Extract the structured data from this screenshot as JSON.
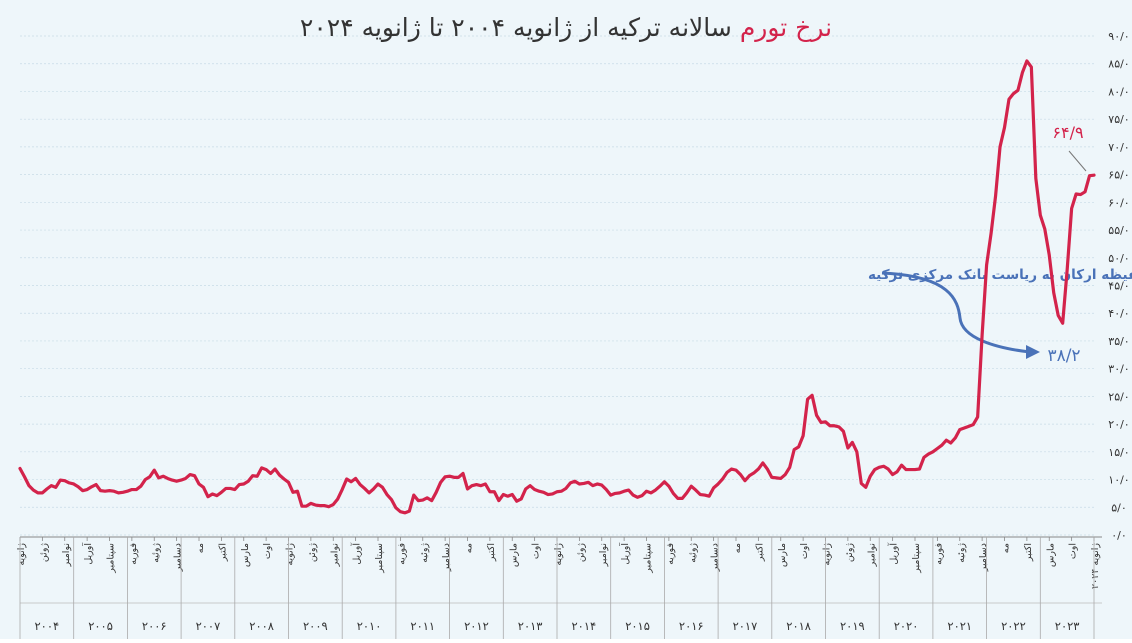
{
  "title": {
    "highlight": "نرخ تورم",
    "rest": "سالانه ترکیه از ژانویه ۲۰۰۴ تا ژانویه ۲۰۲۴"
  },
  "colors": {
    "background": "#eef6fa",
    "line": "#d3234b",
    "annotation": "#4a72b8",
    "grid": "#c8dbe6",
    "text": "#333333"
  },
  "annotation": {
    "text": "انتصاب حفیظه ارکان به ریاست بانک مرکزی ترکیه",
    "low_value_label": "۳۸/۲",
    "last_value_label": "۶۴/۹"
  },
  "chart_data": {
    "type": "line",
    "xlabel": "",
    "ylabel": "",
    "ylim": [
      0,
      90
    ],
    "yticks": [
      "۰/۰",
      "۵/۰",
      "۱۰/۰",
      "۱۵/۰",
      "۲۰/۰",
      "۲۵/۰",
      "۳۰/۰",
      "۳۵/۰",
      "۴۰/۰",
      "۴۵/۰",
      "۵۰/۰",
      "۵۵/۰",
      "۶۰/۰",
      "۶۵/۰",
      "۷۰/۰",
      "۷۵/۰",
      "۸۰/۰",
      "۸۵/۰",
      "۹۰/۰"
    ],
    "x_month_labels": [
      "ژانویه",
      "ژوئن",
      "نوامبر",
      "آوریل",
      "سپتامبر",
      "فوریه",
      "ژوئیه",
      "دسامبر",
      "مه",
      "اکتبر",
      "مارس",
      "اوت",
      "ژانویه",
      "ژوئن",
      "نوامبر",
      "آوریل",
      "سپتامبر",
      "فوریه",
      "ژوئیه",
      "دسامبر",
      "مه",
      "اکتبر",
      "مارس",
      "اوت",
      "ژانویه",
      "ژوئن",
      "نوامبر",
      "آوریل",
      "سپتامبر",
      "فوریه",
      "ژوئیه",
      "دسامبر",
      "مه",
      "اکتبر",
      "مارس",
      "اوت",
      "ژانویه",
      "ژوئن",
      "نوامبر",
      "آوریل",
      "سپتامبر",
      "فوریه",
      "ژوئیه",
      "دسامبر",
      "مه",
      "اکتبر",
      "مارس",
      "اوت",
      "ژانویه ۲۰۲۴"
    ],
    "x_year_labels": [
      "۲۰۰۴",
      "۲۰۰۵",
      "۲۰۰۶",
      "۲۰۰۷",
      "۲۰۰۸",
      "۲۰۰۹",
      "۲۰۱۰",
      "۲۰۱۱",
      "۲۰۱۲",
      "۲۰۱۳",
      "۲۰۱۴",
      "۲۰۱۵",
      "۲۰۱۶",
      "۲۰۱۷",
      "۲۰۱۸",
      "۲۰۱۹",
      "۲۰۲۰",
      "۲۰۲۱",
      "۲۰۲۲",
      "۲۰۲۳"
    ],
    "x_start": "2004-01",
    "x_end": "2024-01",
    "series": [
      {
        "values": [
          12.0,
          10.5,
          8.9,
          8.1,
          7.6,
          7.6,
          8.3,
          8.9,
          8.6,
          9.9,
          9.8,
          9.4,
          9.2,
          8.7,
          8.0,
          8.2,
          8.7,
          9.1,
          8.0,
          7.9,
          8.0,
          7.9,
          7.6,
          7.7,
          7.9,
          8.2,
          8.2,
          8.8,
          10.0,
          10.5,
          11.7,
          10.3,
          10.6,
          10.2,
          9.9,
          9.7,
          9.9,
          10.2,
          10.9,
          10.7,
          9.2,
          8.6,
          6.9,
          7.4,
          7.1,
          7.7,
          8.4,
          8.4,
          8.2,
          9.1,
          9.2,
          9.7,
          10.7,
          10.6,
          12.1,
          11.8,
          11.1,
          11.9,
          10.8,
          10.1,
          9.5,
          7.7,
          7.9,
          5.2,
          5.2,
          5.7,
          5.4,
          5.3,
          5.3,
          5.1,
          5.5,
          6.5,
          8.2,
          10.1,
          9.6,
          10.2,
          9.1,
          8.4,
          7.6,
          8.3,
          9.2,
          8.6,
          7.3,
          6.4,
          4.9,
          4.2,
          4.0,
          4.3,
          7.2,
          6.2,
          6.3,
          6.7,
          6.2,
          7.7,
          9.5,
          10.5,
          10.6,
          10.4,
          10.4,
          11.1,
          8.3,
          8.9,
          9.1,
          8.9,
          9.2,
          7.8,
          7.8,
          6.2,
          7.3,
          7.0,
          7.3,
          6.1,
          6.5,
          8.3,
          8.9,
          8.2,
          7.9,
          7.7,
          7.3,
          7.4,
          7.8,
          7.9,
          8.4,
          9.4,
          9.7,
          9.2,
          9.3,
          9.5,
          8.9,
          9.2,
          9.0,
          8.2,
          7.2,
          7.5,
          7.6,
          7.9,
          8.1,
          7.2,
          6.8,
          7.1,
          7.9,
          7.6,
          8.1,
          8.8,
          9.6,
          8.8,
          7.5,
          6.6,
          6.6,
          7.6,
          8.8,
          8.1,
          7.3,
          7.2,
          7.0,
          8.5,
          9.2,
          10.1,
          11.3,
          11.9,
          11.7,
          10.9,
          9.8,
          10.7,
          11.2,
          11.9,
          13.0,
          11.9,
          10.4,
          10.3,
          10.2,
          10.9,
          12.2,
          15.4,
          15.9,
          17.9,
          24.5,
          25.2,
          21.6,
          20.3,
          20.4,
          19.7,
          19.7,
          19.5,
          18.7,
          15.7,
          16.7,
          15.0,
          9.3,
          8.6,
          10.6,
          11.8,
          12.2,
          12.4,
          11.9,
          10.9,
          11.4,
          12.6,
          11.8,
          11.8,
          11.8,
          11.9,
          14.0,
          14.6,
          15.0,
          15.6,
          16.2,
          17.1,
          16.6,
          17.5,
          19.0,
          19.3,
          19.6,
          19.9,
          21.3,
          36.1,
          48.7,
          54.4,
          61.1,
          70.0,
          73.5,
          78.6,
          79.6,
          80.2,
          83.4,
          85.5,
          84.4,
          64.3,
          57.7,
          55.2,
          50.5,
          43.7,
          39.6,
          38.2,
          47.8,
          58.9,
          61.5,
          61.4,
          61.9,
          64.8,
          64.9
        ]
      }
    ]
  }
}
